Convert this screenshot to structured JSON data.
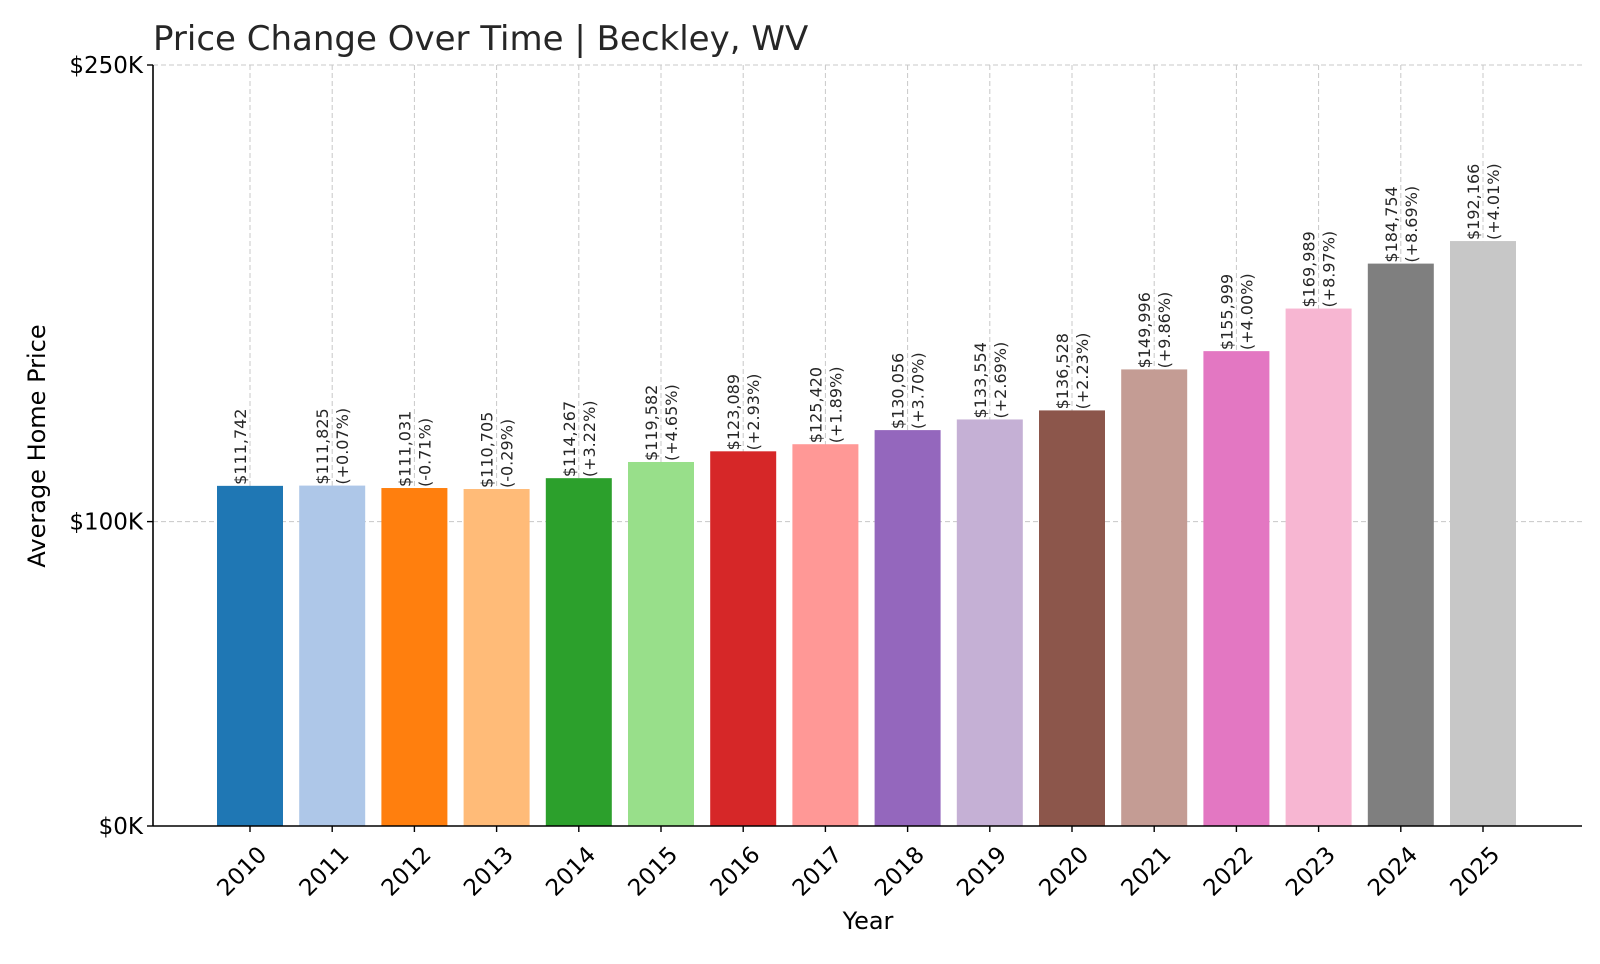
{
  "chart_data": {
    "type": "bar",
    "title": "Price Change Over Time | Beckley, WV",
    "xlabel": "Year",
    "ylabel": "Average Home Price",
    "ylim": [
      0,
      250000
    ],
    "yticks": [
      {
        "value": 0,
        "label": "$0K"
      },
      {
        "value": 100000,
        "label": "$100K"
      },
      {
        "value": 250000,
        "label": "$250K"
      }
    ],
    "grid": true,
    "categories": [
      "2010",
      "2011",
      "2012",
      "2013",
      "2014",
      "2015",
      "2016",
      "2017",
      "2018",
      "2019",
      "2020",
      "2021",
      "2022",
      "2023",
      "2024",
      "2025"
    ],
    "values": [
      111742,
      111825,
      111031,
      110705,
      114267,
      119582,
      123089,
      125420,
      130056,
      133554,
      136528,
      149996,
      155999,
      169989,
      184754,
      192166
    ],
    "value_labels": [
      "$111,742",
      "$111,825",
      "$111,031",
      "$110,705",
      "$114,267",
      "$119,582",
      "$123,089",
      "$125,420",
      "$130,056",
      "$133,554",
      "$136,528",
      "$149,996",
      "$155,999",
      "$169,989",
      "$184,754",
      "$192,166"
    ],
    "change_labels": [
      "",
      "(+0.07%)",
      "(-0.71%)",
      "(-0.29%)",
      "(+3.22%)",
      "(+4.65%)",
      "(+2.93%)",
      "(+1.89%)",
      "(+3.70%)",
      "(+2.69%)",
      "(+2.23%)",
      "(+9.86%)",
      "(+4.00%)",
      "(+8.97%)",
      "(+8.69%)",
      "(+4.01%)"
    ],
    "colors": [
      "#1f77b4",
      "#aec7e8",
      "#ff7f0e",
      "#ffbb78",
      "#2ca02c",
      "#98df8a",
      "#d62728",
      "#ff9896",
      "#9467bd",
      "#c5b0d5",
      "#8c564b",
      "#c49c94",
      "#e377c2",
      "#f7b6d2",
      "#7f7f7f",
      "#c7c7c7"
    ]
  }
}
